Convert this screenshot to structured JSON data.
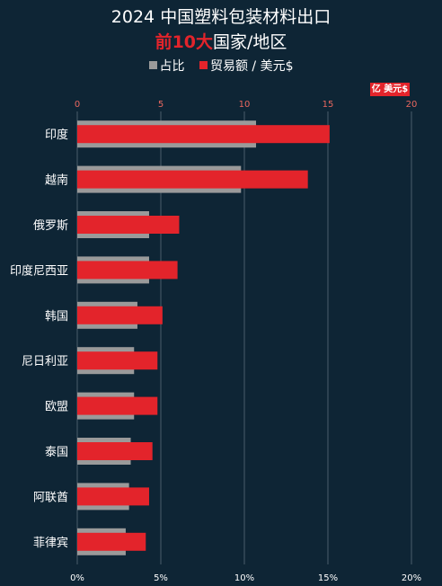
{
  "chart_data": {
    "type": "bar",
    "title": "2024 中国塑料包装材料出口",
    "subtitle_highlight": "前10大",
    "subtitle_rest": "国家/地区",
    "unit_badge": "亿 美元$",
    "categories": [
      "印度",
      "越南",
      "俄罗斯",
      "印度尼西亚",
      "韩国",
      "尼日利亚",
      "欧盟",
      "泰国",
      "阿联酋",
      "菲律宾"
    ],
    "series": [
      {
        "name": "占比",
        "axis": "bottom",
        "color": "#9a9a9a",
        "values": [
          10.7,
          9.8,
          4.3,
          4.3,
          3.6,
          3.4,
          3.4,
          3.2,
          3.1,
          2.9
        ]
      },
      {
        "name": "贸易额 / 美元$",
        "axis": "top",
        "color": "#e3242b",
        "values": [
          15.1,
          13.8,
          6.1,
          6.0,
          5.1,
          4.8,
          4.8,
          4.5,
          4.3,
          4.1
        ]
      }
    ],
    "top_axis": {
      "min": 0,
      "max": 20,
      "ticks": [
        "0",
        "5",
        "10",
        "15",
        "20"
      ]
    },
    "bottom_axis": {
      "min": 0,
      "max": 20,
      "ticks": [
        "0%",
        "5%",
        "10%",
        "15%",
        "20%"
      ]
    },
    "grid": true,
    "legend_position": "top"
  }
}
